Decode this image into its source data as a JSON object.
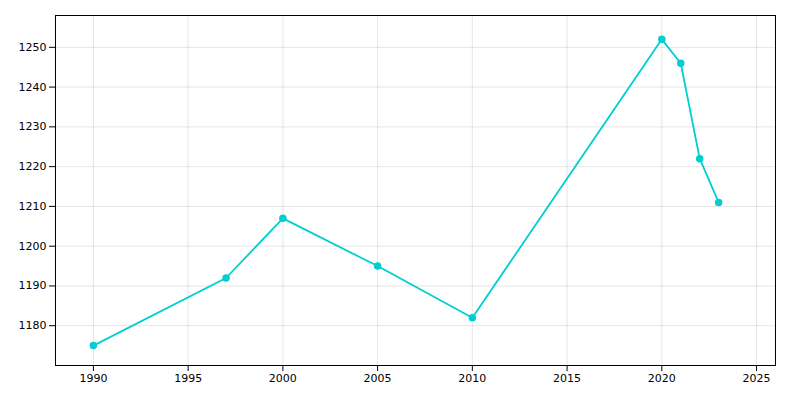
{
  "chart_data": {
    "type": "line",
    "x": [
      1990,
      1997,
      2000,
      2005,
      2010,
      2020,
      2021,
      2022,
      2023
    ],
    "values": [
      1175,
      1192,
      1207,
      1195,
      1182,
      1252,
      1246,
      1222,
      1211
    ],
    "color": "#00CED1",
    "marker": "circle",
    "xlim": [
      1988,
      2026
    ],
    "ylim": [
      1170,
      1258
    ],
    "xticks": [
      1990,
      1995,
      2000,
      2005,
      2010,
      2015,
      2020,
      2025
    ],
    "yticks": [
      1180,
      1190,
      1200,
      1210,
      1220,
      1230,
      1240,
      1250
    ],
    "grid": true
  }
}
